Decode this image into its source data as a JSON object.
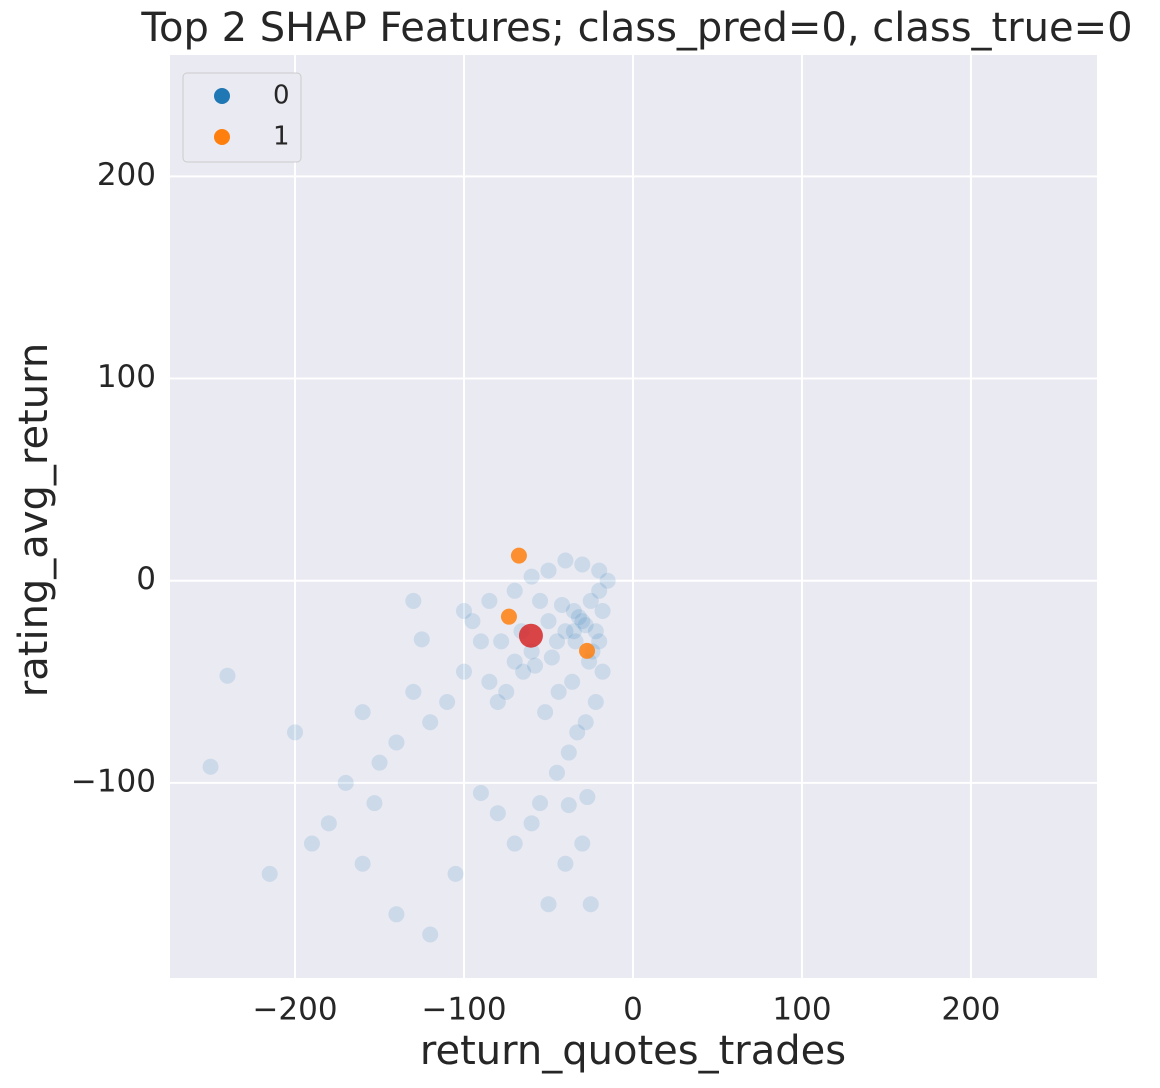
{
  "chart_data": {
    "type": "scatter",
    "title": "Top 2 SHAP Features; class_pred=0, class_true=0",
    "x_label": "return_quotes_trades",
    "y_label": "rating_avg_return",
    "xlim": [
      -274,
      274.6
    ],
    "ylim": [
      -196.5,
      260
    ],
    "xticks": [
      {
        "value": -200,
        "label": "−200"
      },
      {
        "value": -100,
        "label": "−100"
      },
      0,
      100,
      200
    ],
    "yticks": [
      {
        "value": -100,
        "label": "−100"
      },
      0,
      100,
      200
    ],
    "grid": true,
    "legend": "upper left",
    "series": [
      {
        "name": "0",
        "color": "#1f77b4",
        "alpha": 0.15,
        "x": [
          -30,
          -25,
          -20,
          -35,
          -40,
          -45,
          -50,
          -55,
          -60,
          -65,
          -70,
          -75,
          -80,
          -85,
          -90,
          -95,
          -100,
          -110,
          -120,
          -130,
          -140,
          -150,
          -160,
          -170,
          -180,
          -190,
          -200,
          -215,
          -240,
          -250,
          -20,
          -18,
          -22,
          -28,
          -33,
          -38,
          -45,
          -55,
          -60,
          -50,
          -40,
          -30,
          -25,
          -70,
          -80,
          -90,
          -105,
          -120,
          -140,
          -160,
          -15,
          -20,
          -30,
          -40,
          -50,
          -60,
          -70,
          -85,
          -100,
          -130,
          -125,
          -153,
          -38,
          -27,
          -35,
          -32,
          -28,
          -42,
          -48,
          -58,
          -24,
          -36,
          -44,
          -52,
          -66,
          -78,
          -18,
          -22,
          -26,
          -34
        ],
        "values": [
          -20,
          -10,
          -5,
          -15,
          -25,
          -30,
          -20,
          -10,
          -35,
          -45,
          -40,
          -55,
          -60,
          -50,
          -30,
          -20,
          -45,
          -60,
          -70,
          -55,
          -80,
          -90,
          -65,
          -100,
          -120,
          -130,
          -75,
          -145,
          -47,
          -92,
          -30,
          -45,
          -60,
          -70,
          -75,
          -85,
          -95,
          -110,
          -120,
          -160,
          -140,
          -130,
          -160,
          -130,
          -115,
          -105,
          -145,
          -175,
          -165,
          -140,
          0,
          5,
          8,
          10,
          5,
          2,
          -5,
          -10,
          -15,
          -10,
          -29,
          -110,
          -111,
          -107,
          -25,
          -18,
          -22,
          -12,
          -38,
          -42,
          -35,
          -50,
          -55,
          -65,
          -25,
          -30,
          -15,
          -25,
          -40,
          -30
        ]
      },
      {
        "name": "1",
        "color": "#ff7f0e",
        "alpha": 0.85,
        "x": [
          -73.4,
          -27.2,
          -67.5
        ],
        "values": [
          -17.8,
          -34.7,
          12.4
        ]
      }
    ],
    "highlight": {
      "color": "#d62728",
      "x": [
        -60.4
      ],
      "values": [
        -27.2
      ]
    }
  }
}
